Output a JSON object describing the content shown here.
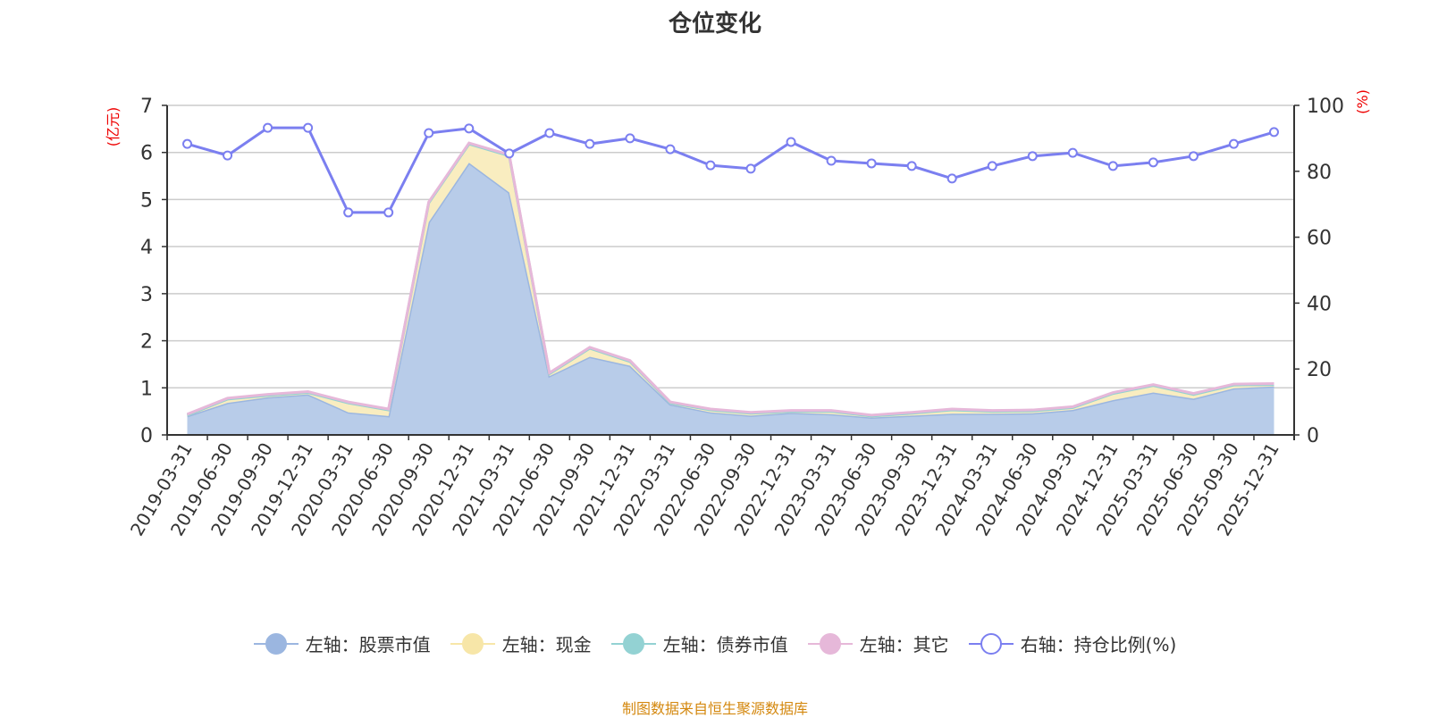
{
  "title": "仓位变化",
  "footer": "制图数据来自恒生聚源数据库",
  "chart_data": {
    "type": "area",
    "title": "仓位变化",
    "ylabel_left": "(亿元)",
    "ylabel_right": "(%)",
    "ylim_left": [
      0,
      7
    ],
    "ylim_right": [
      0,
      100
    ],
    "yticks_left": [
      0,
      1,
      2,
      3,
      4,
      5,
      6,
      7
    ],
    "yticks_right": [
      0,
      20,
      40,
      60,
      80,
      100
    ],
    "grid": true,
    "legend_position": "bottom",
    "stacked": true,
    "categories": [
      "2019-03-31",
      "2019-06-30",
      "2019-09-30",
      "2019-12-31",
      "2020-03-31",
      "2020-06-30",
      "2020-09-30",
      "2020-12-31",
      "2021-03-31",
      "2021-06-30",
      "2021-09-30",
      "2021-12-31",
      "2022-03-31",
      "2022-06-30",
      "2022-09-30",
      "2022-12-31",
      "2023-03-31",
      "2023-06-30",
      "2023-09-30",
      "2023-12-31",
      "2024-03-31",
      "2024-06-30",
      "2024-09-30",
      "2024-12-31",
      "2025-03-31",
      "2025-06-30",
      "2025-09-30",
      "2025-12-31"
    ],
    "series": [
      {
        "name": "左轴：股票市值",
        "axis": "left",
        "color": "#9bb6e0",
        "fill": "#b8cce9",
        "values": [
          0.4,
          0.68,
          0.8,
          0.86,
          0.48,
          0.4,
          4.52,
          5.78,
          5.15,
          1.25,
          1.66,
          1.47,
          0.65,
          0.48,
          0.41,
          0.47,
          0.44,
          0.37,
          0.41,
          0.45,
          0.45,
          0.46,
          0.53,
          0.74,
          0.9,
          0.77,
          0.99,
          1.03
        ]
      },
      {
        "name": "左轴：现金",
        "axis": "left",
        "color": "#f7e6a8",
        "fill": "#f9edc0",
        "values": [
          0.02,
          0.08,
          0.04,
          0.04,
          0.2,
          0.13,
          0.41,
          0.4,
          0.78,
          0.05,
          0.18,
          0.09,
          0.03,
          0.05,
          0.05,
          0.03,
          0.06,
          0.03,
          0.05,
          0.08,
          0.05,
          0.05,
          0.05,
          0.14,
          0.15,
          0.09,
          0.07,
          0.04
        ]
      },
      {
        "name": "左轴：债券市值",
        "axis": "left",
        "color": "#93d2d3",
        "fill": "#b5e0e0",
        "values": [
          0,
          0,
          0,
          0,
          0,
          0,
          0,
          0,
          0,
          0,
          0,
          0,
          0,
          0,
          0,
          0,
          0,
          0,
          0,
          0,
          0,
          0,
          0,
          0,
          0,
          0,
          0,
          0
        ]
      },
      {
        "name": "左轴：其它",
        "axis": "left",
        "color": "#e6b8d9",
        "fill": "#f0d2e7",
        "values": [
          0.02,
          0.02,
          0.02,
          0.02,
          0.02,
          0.02,
          0.02,
          0.02,
          0.02,
          0.02,
          0.02,
          0.02,
          0.02,
          0.02,
          0.02,
          0.02,
          0.02,
          0.02,
          0.02,
          0.02,
          0.02,
          0.02,
          0.02,
          0.02,
          0.02,
          0.02,
          0.02,
          0.02
        ]
      },
      {
        "name": "右轴：持仓比例(%)",
        "axis": "right",
        "color": "#7b7ff0",
        "values": [
          88.3,
          84.8,
          93.2,
          93.2,
          67.5,
          67.5,
          91.6,
          93.0,
          85.4,
          91.6,
          88.3,
          90.0,
          86.7,
          81.8,
          80.8,
          88.9,
          83.2,
          82.4,
          81.6,
          77.8,
          81.6,
          84.6,
          85.6,
          81.6,
          82.7,
          84.6,
          88.3,
          91.9
        ]
      }
    ]
  }
}
